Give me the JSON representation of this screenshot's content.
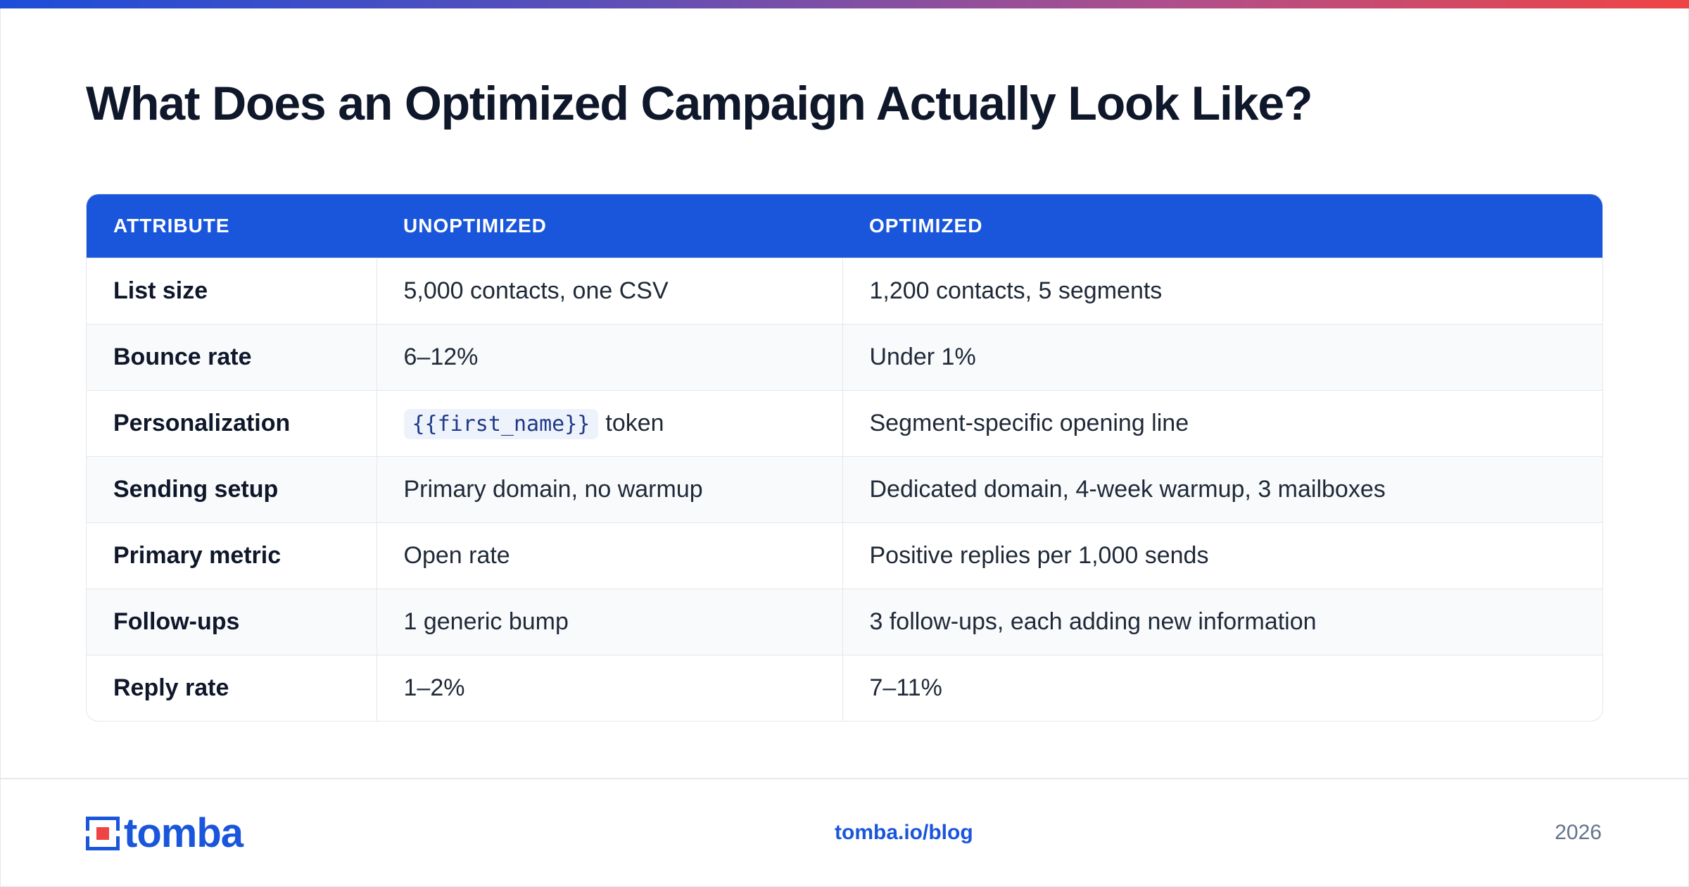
{
  "title": "What Does an Optimized Campaign Actually Look Like?",
  "colors": {
    "accent": "#1a56db",
    "gradient_start": "#1d4ed8",
    "gradient_end": "#ef4444"
  },
  "table": {
    "headers": [
      "ATTRIBUTE",
      "UNOPTIMIZED",
      "OPTIMIZED"
    ],
    "rows": [
      {
        "attribute": "List size",
        "unoptimized": "5,000 contacts, one CSV",
        "optimized": "1,200 contacts, 5 segments"
      },
      {
        "attribute": "Bounce rate",
        "unoptimized": "6–12%",
        "optimized": "Under 1%"
      },
      {
        "attribute": "Personalization",
        "unoptimized_token": "{{first_name}}",
        "unoptimized": "token",
        "optimized": "Segment-specific opening line"
      },
      {
        "attribute": "Sending setup",
        "unoptimized": "Primary domain, no warmup",
        "optimized": "Dedicated domain, 4-week warmup, 3 mailboxes"
      },
      {
        "attribute": "Primary metric",
        "unoptimized": "Open rate",
        "optimized": "Positive replies per 1,000 sends"
      },
      {
        "attribute": "Follow-ups",
        "unoptimized": "1 generic bump",
        "optimized": "3 follow-ups, each adding new information"
      },
      {
        "attribute": "Reply rate",
        "unoptimized": "1–2%",
        "optimized": "7–11%"
      }
    ]
  },
  "footer": {
    "logo_text": "tomba",
    "logo_icon": "tomba-logo-icon",
    "link": "tomba.io/blog",
    "year": "2026"
  }
}
